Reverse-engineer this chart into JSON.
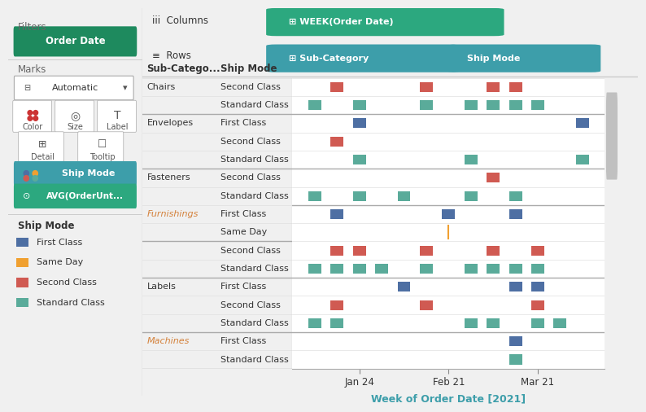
{
  "colors": {
    "first_class": "#4e6fa3",
    "same_day": "#f0a030",
    "second_class": "#d05a52",
    "standard_class": "#5aab9a",
    "header_green": "#2ca87f",
    "filter_green": "#1e8a5e",
    "row_teal": "#3d9eaa",
    "text_dark": "#333333",
    "text_orange": "#d4813a",
    "panel_bg": "#f5f5f5"
  },
  "left_panel": {
    "legend_items": [
      "First Class",
      "Same Day",
      "Second Class",
      "Standard Class"
    ]
  },
  "x_ticks": [
    "Jan 24",
    "Feb 21",
    "Mar 21"
  ],
  "x_tick_positions": [
    3,
    7,
    11
  ],
  "x_axis_label": "Week of Order Date [2021]",
  "x_range": [
    0,
    14
  ],
  "rows": [
    {
      "sub_cat": "Chairs",
      "ship": "Second Class",
      "color": "second_class",
      "positions": [
        2,
        6,
        9,
        10
      ]
    },
    {
      "sub_cat": "",
      "ship": "Standard Class",
      "color": "standard_class",
      "positions": [
        1,
        3,
        6,
        8,
        9,
        10,
        11
      ]
    },
    {
      "sub_cat": "Envelopes",
      "ship": "First Class",
      "color": "first_class",
      "positions": [
        3,
        13
      ]
    },
    {
      "sub_cat": "",
      "ship": "Second Class",
      "color": "second_class",
      "positions": [
        2
      ]
    },
    {
      "sub_cat": "",
      "ship": "Standard Class",
      "color": "standard_class",
      "positions": [
        3,
        8,
        13
      ]
    },
    {
      "sub_cat": "Fasteners",
      "ship": "Second Class",
      "color": "second_class",
      "positions": [
        9
      ]
    },
    {
      "sub_cat": "",
      "ship": "Standard Class",
      "color": "standard_class",
      "positions": [
        1,
        3,
        5,
        8,
        10
      ]
    },
    {
      "sub_cat": "Furnishings",
      "ship": "First Class",
      "color": "first_class",
      "positions": [
        2,
        7,
        10
      ]
    },
    {
      "sub_cat": "",
      "ship": "Same Day",
      "color": "same_day",
      "positions": [
        7
      ]
    },
    {
      "sub_cat": "",
      "ship": "Second Class",
      "color": "second_class",
      "positions": [
        2,
        3,
        6,
        9,
        11
      ]
    },
    {
      "sub_cat": "",
      "ship": "Standard Class",
      "color": "standard_class",
      "positions": [
        1,
        2,
        3,
        4,
        6,
        8,
        9,
        10,
        11
      ]
    },
    {
      "sub_cat": "Labels",
      "ship": "First Class",
      "color": "first_class",
      "positions": [
        5,
        10,
        11
      ]
    },
    {
      "sub_cat": "",
      "ship": "Second Class",
      "color": "second_class",
      "positions": [
        2,
        6,
        11
      ]
    },
    {
      "sub_cat": "",
      "ship": "Standard Class",
      "color": "standard_class",
      "positions": [
        1,
        2,
        8,
        9,
        11,
        12
      ]
    },
    {
      "sub_cat": "Machines",
      "ship": "First Class",
      "color": "first_class",
      "positions": [
        10
      ]
    },
    {
      "sub_cat": "",
      "ship": "Standard Class",
      "color": "standard_class",
      "positions": [
        10
      ]
    }
  ],
  "group_separators": [
    2,
    5,
    7,
    11,
    14
  ]
}
